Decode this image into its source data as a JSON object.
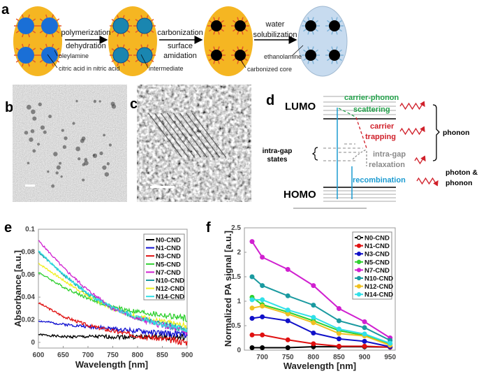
{
  "panel_labels": {
    "a": "a",
    "b": "b",
    "c": "c",
    "d": "d",
    "e": "e",
    "f": "f"
  },
  "panel_a": {
    "arrow1": [
      "polymerization",
      "dehydration"
    ],
    "arrow2": [
      "carbonization",
      "surface",
      "amidation"
    ],
    "arrow3": [
      "water",
      "solubilization"
    ],
    "labels": {
      "oleylamine": "oleylamine",
      "citric": "citric acid in nitric acid",
      "intermediate": "intermediate",
      "core": "carbonized core",
      "ethanolamine": "ethanolamine"
    },
    "colors": {
      "matrix": "#f5b622",
      "droplet": "#1a6fd6",
      "intermediate": "#1a86b0",
      "core": "#000000",
      "water": "#c7dbef",
      "ligand": "#e2572a",
      "ethanolamine": "#7fb3d8"
    }
  },
  "panel_d": {
    "lumo": "LUMO",
    "homo": "HOMO",
    "scatter": [
      "carrier-phonon",
      "scattering"
    ],
    "trap": [
      "carrier",
      "trapping"
    ],
    "intragap_states": [
      "intra-gap",
      "states"
    ],
    "relax": [
      "intra-gap",
      "relaxation"
    ],
    "recombination": "recombination",
    "phonon": "phonon",
    "photon": [
      "photon &",
      "phonon"
    ],
    "colors": {
      "scatter": "#22a24a",
      "trap": "#d0202a",
      "relax": "#8a8a8a",
      "recomb": "#1b9bd1"
    }
  },
  "chart_data": [
    {
      "type": "line",
      "xlabel": "Wavelength [nm]",
      "ylabel": "Absorbance [a.u.]",
      "xlim": [
        600,
        900
      ],
      "ylim": [
        -0.005,
        0.1
      ],
      "xticks": [
        "600",
        "650",
        "700",
        "750",
        "800",
        "850",
        "900"
      ],
      "yticks": [
        "0",
        "0.02",
        "0.04",
        "0.06",
        "0.08",
        "0.1"
      ],
      "legend": "top-right",
      "grid": false,
      "x": [
        600,
        650,
        700,
        750,
        800,
        850,
        900
      ],
      "series": [
        {
          "name": "N0-CND",
          "color": "#000000",
          "values": [
            0.007,
            0.005,
            0.005,
            0.005,
            0.005,
            0.005,
            0.004
          ]
        },
        {
          "name": "N1-CND",
          "color": "#1010d0",
          "values": [
            0.019,
            0.016,
            0.014,
            0.012,
            0.01,
            0.008,
            0.007
          ]
        },
        {
          "name": "N3-CND",
          "color": "#e01010",
          "values": [
            0.035,
            0.023,
            0.015,
            0.01,
            0.006,
            0.003,
            0.0
          ]
        },
        {
          "name": "N5-CND",
          "color": "#30d030",
          "values": [
            0.062,
            0.049,
            0.039,
            0.031,
            0.027,
            0.024,
            0.021
          ]
        },
        {
          "name": "N7-CND",
          "color": "#d020d0",
          "values": [
            0.09,
            0.066,
            0.046,
            0.03,
            0.021,
            0.015,
            0.009
          ]
        },
        {
          "name": "N10-CND",
          "color": "#1a9aa0",
          "values": [
            0.08,
            0.06,
            0.043,
            0.03,
            0.022,
            0.016,
            0.011
          ]
        },
        {
          "name": "N12-CND",
          "color": "#f0f020",
          "values": [
            0.07,
            0.055,
            0.041,
            0.03,
            0.023,
            0.018,
            0.014
          ]
        },
        {
          "name": "N14-CND",
          "color": "#30e0e8",
          "values": [
            0.081,
            0.06,
            0.043,
            0.03,
            0.022,
            0.016,
            0.011
          ]
        }
      ]
    },
    {
      "type": "line",
      "xlabel": "Wavelength [nm]",
      "ylabel": "Normalized PA signal [a.u.]",
      "xlim": [
        665,
        960
      ],
      "ylim": [
        0,
        2.5
      ],
      "xticks": [
        "700",
        "750",
        "800",
        "850",
        "900",
        "950"
      ],
      "yticks": [
        "0",
        "0.5",
        "1",
        "1.5",
        "2",
        "2.5"
      ],
      "legend": "top-right",
      "grid": false,
      "markers": true,
      "error_bars": true,
      "x": [
        680,
        700,
        750,
        800,
        850,
        900,
        950
      ],
      "series": [
        {
          "name": "N0-CND",
          "color": "#000000",
          "marker": "o",
          "values": [
            0.05,
            0.05,
            0.05,
            0.07,
            0.07,
            0.07,
            0.06
          ]
        },
        {
          "name": "N1-CND",
          "color": "#e01010",
          "marker": "^",
          "values": [
            0.31,
            0.31,
            0.21,
            0.13,
            0.08,
            0.08,
            0.06
          ]
        },
        {
          "name": "N3-CND",
          "color": "#1010c8",
          "marker": "^",
          "values": [
            0.65,
            0.68,
            0.6,
            0.35,
            0.23,
            0.18,
            0.07
          ]
        },
        {
          "name": "N5-CND",
          "color": "#30d030",
          "marker": "v",
          "values": [
            1.08,
            0.93,
            0.78,
            0.6,
            0.4,
            0.3,
            0.12
          ]
        },
        {
          "name": "N7-CND",
          "color": "#d020d0",
          "marker": ">",
          "values": [
            2.22,
            1.9,
            1.65,
            1.32,
            0.85,
            0.58,
            0.25
          ]
        },
        {
          "name": "N10-CND",
          "color": "#1a9aa0",
          "marker": "<",
          "values": [
            1.5,
            1.32,
            1.11,
            0.92,
            0.6,
            0.46,
            0.2
          ]
        },
        {
          "name": "N12-CND",
          "color": "#f0c020",
          "marker": "s",
          "values": [
            0.86,
            0.9,
            0.74,
            0.56,
            0.34,
            0.29,
            0.1
          ]
        },
        {
          "name": "N14-CND",
          "color": "#30e0e8",
          "marker": "*",
          "values": [
            1.03,
            1.03,
            0.82,
            0.67,
            0.43,
            0.33,
            0.14
          ]
        }
      ]
    }
  ]
}
